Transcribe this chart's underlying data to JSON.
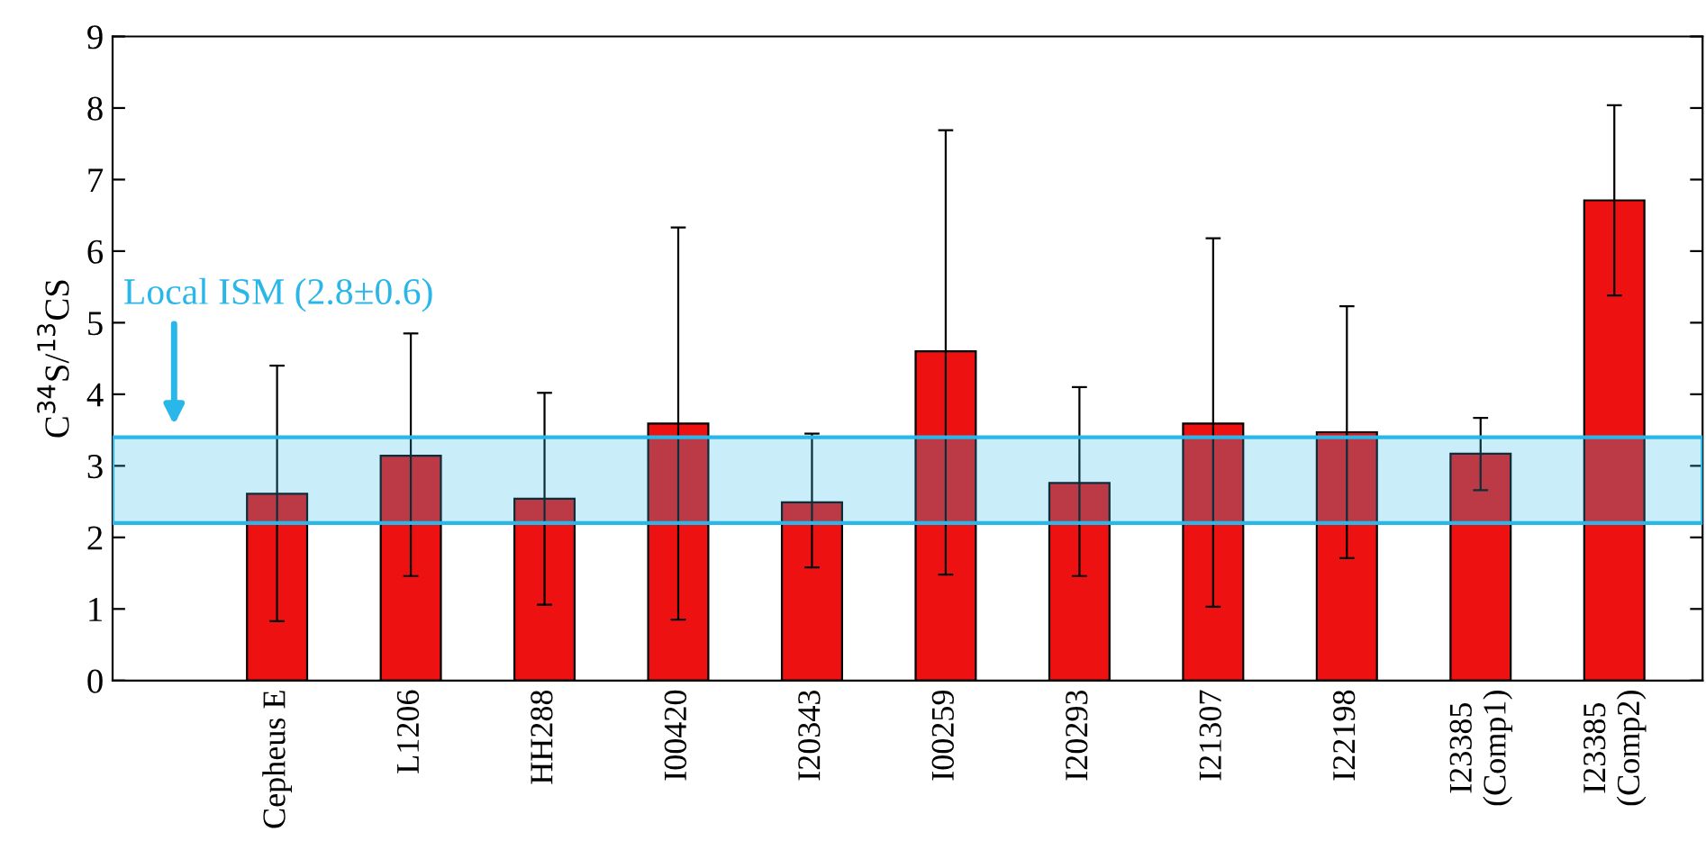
{
  "chart_data": {
    "type": "bar",
    "ylabel": "C$^{34}$S/$^{13}$CS",
    "categories": [
      "Cepheus E",
      "L1206",
      "HH288",
      "I00420",
      "I20343",
      "I00259",
      "I20293",
      "I21307",
      "I22198",
      "I23385\n(Comp1)",
      "I23385\n(Comp2)"
    ],
    "values": [
      2.61,
      3.14,
      2.54,
      3.59,
      2.49,
      4.6,
      2.76,
      3.59,
      3.47,
      3.17,
      6.71
    ],
    "errors": [
      [
        0.83,
        4.4
      ],
      [
        1.46,
        4.85
      ],
      [
        1.06,
        4.02
      ],
      [
        0.85,
        6.33
      ],
      [
        1.58,
        3.45
      ],
      [
        1.48,
        7.69
      ],
      [
        1.46,
        4.1
      ],
      [
        1.03,
        6.18
      ],
      [
        1.71,
        5.23
      ],
      [
        2.66,
        3.67
      ],
      [
        5.38,
        8.04
      ]
    ],
    "color": "#ee1111",
    "ylim": [
      0,
      9
    ],
    "yticks": [
      0,
      1,
      2,
      3,
      4,
      5,
      6,
      7,
      8,
      9
    ],
    "bands": [
      {
        "axis": "y",
        "from": 2.2,
        "to": 3.4,
        "label": "Local ISM (2.8±0.6)",
        "color": "#29b6e8"
      }
    ],
    "grid": false
  }
}
